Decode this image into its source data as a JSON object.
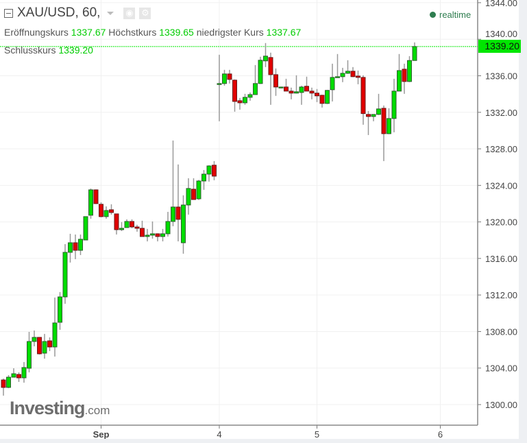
{
  "header": {
    "symbol_title": "XAU/USD, 60,",
    "icons": [
      "collapse-icon",
      "chevron-down-icon",
      "eye-icon",
      "gear-icon"
    ],
    "realtime_label": "realtime"
  },
  "legend": {
    "open_label": "Eröffnungskurs",
    "open_value": "1337.67",
    "high_label": "Höchstkurs",
    "high_value": "1339.65",
    "low_label": "niedrigster Kurs",
    "low_value": "1337.67",
    "close_label": "Schlusskurs",
    "close_value": "1339.20"
  },
  "logo": {
    "brand": "Investing",
    "suffix": ".com"
  },
  "colors": {
    "up": "#00dd00",
    "down": "#e00000",
    "value_text": "#00cc00",
    "price_line": "#00e600",
    "wick": "#999999"
  },
  "chart_data": {
    "type": "candlestick",
    "title": "XAU/USD, 60,",
    "interval": "60",
    "ylim": [
      1298,
      1345
    ],
    "y_ticks": [
      1300,
      1304,
      1308,
      1312,
      1316,
      1320,
      1324,
      1328,
      1332,
      1336,
      1340,
      1344
    ],
    "y_tick_labels": [
      "1300.00",
      "1304.00",
      "1308.00",
      "1312.00",
      "1316.00",
      "1320.00",
      "1324.00",
      "1328.00",
      "1332.00",
      "1336.00",
      "1340.00",
      "1344.00"
    ],
    "x_ticks": [
      {
        "label": "Sep",
        "candle": 19,
        "bold": true
      },
      {
        "label": "4",
        "candle": 42
      },
      {
        "label": "5",
        "candle": 61
      },
      {
        "label": "6",
        "candle": 85
      }
    ],
    "grid": true,
    "last_price": 1339.2,
    "last_price_label": "1339.20",
    "ohlc": [
      [
        1302.7,
        1302.85,
        1300.98,
        1301.88
      ],
      [
        1301.88,
        1303.23,
        1301.8,
        1303.0
      ],
      [
        1303.0,
        1303.98,
        1303.0,
        1303.38
      ],
      [
        1303.3,
        1303.53,
        1302.48,
        1302.93
      ],
      [
        1302.93,
        1304.66,
        1302.4,
        1304.06
      ],
      [
        1303.98,
        1307.96,
        1303.53,
        1306.91
      ],
      [
        1306.91,
        1308.11,
        1306.38,
        1307.36
      ],
      [
        1307.36,
        1307.4,
        1305.48,
        1305.56
      ],
      [
        1305.63,
        1307.74,
        1305.03,
        1306.91
      ],
      [
        1306.98,
        1307.36,
        1305.86,
        1306.31
      ],
      [
        1306.31,
        1311.72,
        1305.26,
        1308.94
      ],
      [
        1309.01,
        1312.32,
        1308.19,
        1311.79
      ],
      [
        1311.79,
        1317.57,
        1311.04,
        1316.67
      ],
      [
        1316.67,
        1318.7,
        1315.55,
        1317.72
      ],
      [
        1317.72,
        1318.62,
        1315.92,
        1316.89
      ],
      [
        1316.89,
        1318.62,
        1316.37,
        1318.1
      ],
      [
        1318.02,
        1320.6,
        1318.0,
        1320.58
      ],
      [
        1320.73,
        1323.66,
        1320.35,
        1323.51
      ],
      [
        1323.51,
        1323.55,
        1322.0,
        1322.0
      ],
      [
        1321.93,
        1322.15,
        1320.5,
        1320.58
      ],
      [
        1320.58,
        1321.7,
        1320.35,
        1321.25
      ],
      [
        1321.33,
        1321.93,
        1320.8,
        1321.03
      ],
      [
        1320.88,
        1320.9,
        1318.62,
        1319.15
      ],
      [
        1319.15,
        1319.98,
        1319.0,
        1319.3
      ],
      [
        1319.38,
        1320.28,
        1319.38,
        1320.05
      ],
      [
        1320.05,
        1320.28,
        1319.3,
        1319.45
      ],
      [
        1319.45,
        1319.68,
        1318.93,
        1319.3
      ],
      [
        1319.3,
        1320.13,
        1318.4,
        1318.4
      ],
      [
        1318.4,
        1319.23,
        1317.87,
        1318.55
      ],
      [
        1318.55,
        1320.05,
        1318.17,
        1318.7
      ],
      [
        1318.7,
        1318.75,
        1317.87,
        1318.4
      ],
      [
        1318.4,
        1319.23,
        1317.87,
        1318.7
      ],
      [
        1318.7,
        1321.1,
        1318.4,
        1320.05
      ],
      [
        1320.05,
        1328.91,
        1319.53,
        1321.63
      ],
      [
        1321.63,
        1326.29,
        1317.87,
        1320.28
      ],
      [
        1317.72,
        1322.91,
        1316.52,
        1321.85
      ],
      [
        1321.85,
        1324.78,
        1320.8,
        1323.66
      ],
      [
        1323.58,
        1324.78,
        1322.45,
        1322.45
      ],
      [
        1322.53,
        1324.6,
        1322.4,
        1324.48
      ],
      [
        1324.48,
        1325.68,
        1323.51,
        1325.23
      ],
      [
        1325.23,
        1326.2,
        1324.41,
        1326.13
      ],
      [
        1326.21,
        1326.66,
        1324.56,
        1325.01
      ],
      [
        1335.07,
        1338.3,
        1331.02,
        1335.15
      ],
      [
        1335.15,
        1336.65,
        1334.92,
        1336.2
      ],
      [
        1336.2,
        1336.65,
        1335.15,
        1335.6
      ],
      [
        1335.52,
        1335.6,
        1332.07,
        1333.19
      ],
      [
        1333.27,
        1333.57,
        1332.29,
        1333.04
      ],
      [
        1333.04,
        1334.02,
        1332.82,
        1333.64
      ],
      [
        1333.64,
        1334.17,
        1333.27,
        1333.94
      ],
      [
        1333.94,
        1337.17,
        1333.9,
        1335.15
      ],
      [
        1335.15,
        1338.08,
        1335.1,
        1337.7
      ],
      [
        1337.63,
        1339.58,
        1336.95,
        1338.15
      ],
      [
        1338.0,
        1338.53,
        1332.82,
        1336.12
      ],
      [
        1336.12,
        1336.8,
        1333.8,
        1334.77
      ],
      [
        1334.7,
        1334.8,
        1334.7,
        1334.77
      ],
      [
        1334.77,
        1335.67,
        1334.3,
        1334.32
      ],
      [
        1334.32,
        1334.7,
        1333.42,
        1334.1
      ],
      [
        1334.1,
        1336.05,
        1334.05,
        1334.25
      ],
      [
        1334.17,
        1334.92,
        1332.82,
        1334.77
      ],
      [
        1334.85,
        1335.9,
        1334.3,
        1334.32
      ],
      [
        1334.32,
        1334.7,
        1333.42,
        1334.1
      ],
      [
        1334.1,
        1334.55,
        1333.12,
        1333.8
      ],
      [
        1333.87,
        1333.9,
        1332.52,
        1332.97
      ],
      [
        1332.97,
        1334.45,
        1332.9,
        1334.4
      ],
      [
        1334.47,
        1337.32,
        1333.19,
        1335.82
      ],
      [
        1335.82,
        1338.38,
        1335.8,
        1335.9
      ],
      [
        1335.9,
        1336.87,
        1335.3,
        1336.27
      ],
      [
        1336.27,
        1337.7,
        1336.2,
        1336.5
      ],
      [
        1336.5,
        1336.95,
        1335.85,
        1335.9
      ],
      [
        1335.97,
        1336.57,
        1335.07,
        1335.82
      ],
      [
        1335.82,
        1336.05,
        1330.64,
        1331.86
      ],
      [
        1331.77,
        1332.14,
        1329.51,
        1331.54
      ],
      [
        1331.54,
        1331.8,
        1331.02,
        1331.77
      ],
      [
        1331.77,
        1334.02,
        1331.7,
        1332.37
      ],
      [
        1332.44,
        1332.74,
        1326.66,
        1329.66
      ],
      [
        1329.66,
        1332.44,
        1329.6,
        1331.32
      ],
      [
        1331.32,
        1335.67,
        1329.81,
        1334.32
      ],
      [
        1334.32,
        1338.38,
        1334.3,
        1336.57
      ],
      [
        1336.72,
        1337.32,
        1334.02,
        1335.37
      ],
      [
        1335.37,
        1338.15,
        1335.3,
        1337.67
      ],
      [
        1337.67,
        1339.65,
        1337.67,
        1339.2
      ]
    ]
  }
}
